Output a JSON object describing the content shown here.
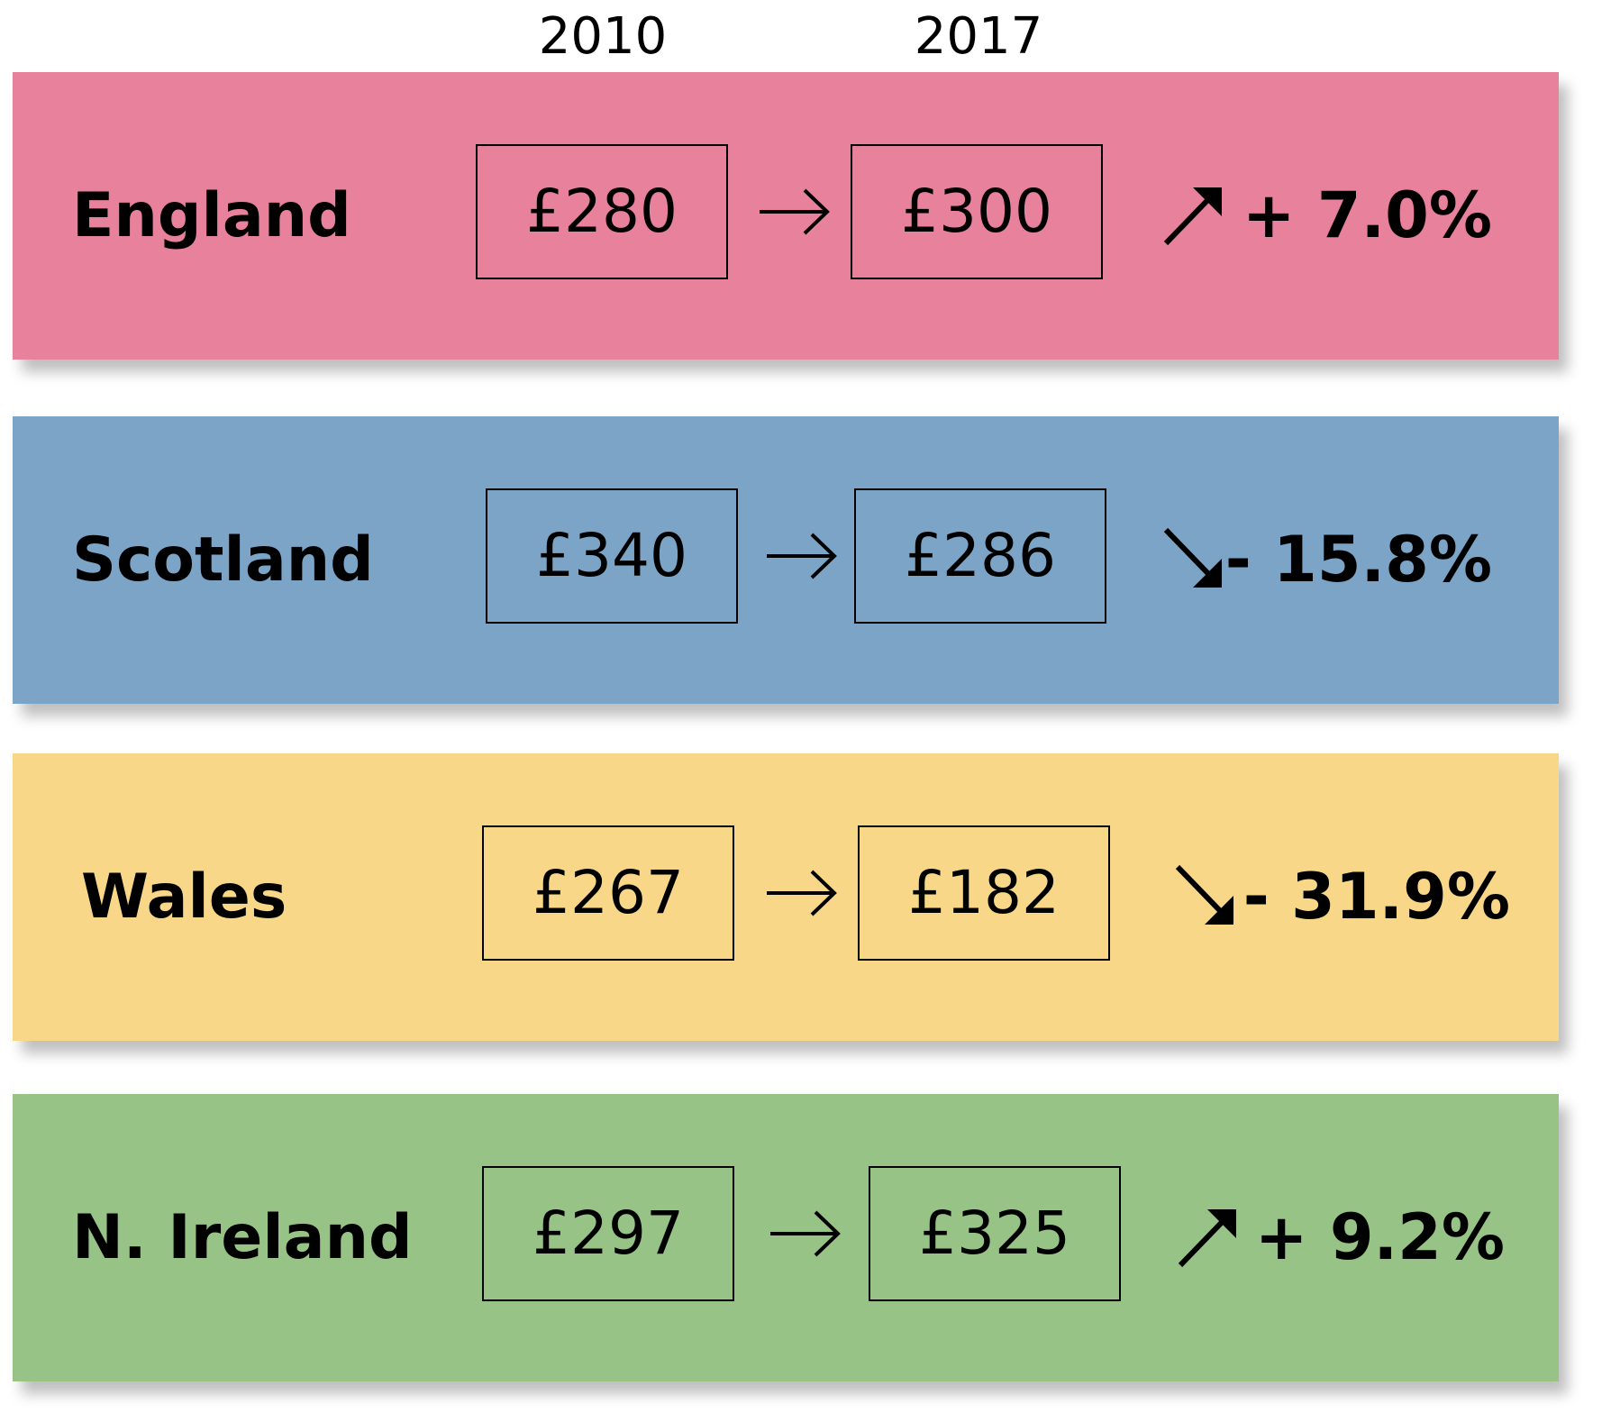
{
  "header": {
    "columns": [
      "2010",
      "2017"
    ]
  },
  "rows": [
    {
      "region": "England",
      "value_2010": "£280",
      "value_2017": "£300",
      "change": "+ 7.0%",
      "color": "#e8819b"
    },
    {
      "region": "Scotland",
      "value_2010": "£340",
      "value_2017": "£286",
      "change": "- 15.8%",
      "color": "#7ba4c7"
    },
    {
      "region": "Wales",
      "value_2010": "£267",
      "value_2017": "£182",
      "change": "- 31.9%",
      "color": "#f8d888"
    },
    {
      "region": "N. Ireland",
      "value_2010": "£297",
      "value_2017": "£325",
      "change": "+ 9.2%",
      "color": "#98c386"
    }
  ]
}
